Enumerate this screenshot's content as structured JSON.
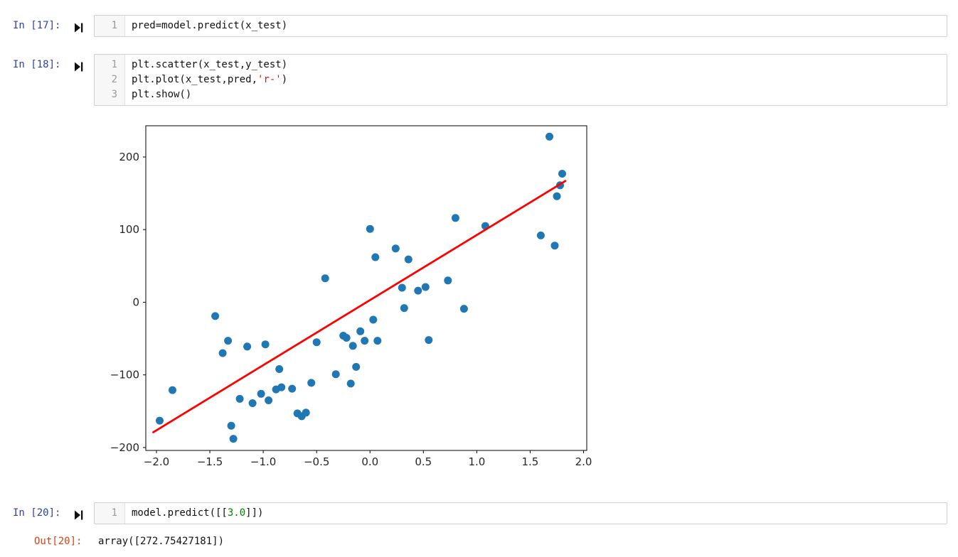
{
  "notebook": {
    "cells": [
      {
        "prompt": "In [17]:",
        "lines": [
          {
            "number": "1",
            "segments": [
              {
                "t": "pred=model.predict(x_test)",
                "type": "plain"
              }
            ]
          }
        ]
      },
      {
        "prompt": "In [18]:",
        "lines": [
          {
            "number": "1",
            "segments": [
              {
                "t": "plt.scatter(x_test,y_test)",
                "type": "plain"
              }
            ]
          },
          {
            "number": "2",
            "segments": [
              {
                "t": "plt.plot(x_test,pred,",
                "type": "plain"
              },
              {
                "t": "'r-'",
                "type": "string"
              },
              {
                "t": ")",
                "type": "plain"
              }
            ]
          },
          {
            "number": "3",
            "segments": [
              {
                "t": "plt.show()",
                "type": "plain"
              }
            ]
          }
        ]
      },
      {
        "prompt": "In [20]:",
        "lines": [
          {
            "number": "1",
            "segments": [
              {
                "t": "model.predict([[",
                "type": "plain"
              },
              {
                "t": "3.0",
                "type": "number"
              },
              {
                "t": "]])",
                "type": "plain"
              }
            ]
          }
        ]
      }
    ],
    "output": {
      "prompt": "Out[20]:",
      "value": "array([272.75427181])"
    }
  },
  "colors": {
    "in_prompt": "#303F9F",
    "out_prompt": "#D84315",
    "string_token": "#BA2121",
    "number_token": "#008000"
  },
  "chart_data": {
    "type": "scatter",
    "title": "",
    "xlabel": "",
    "ylabel": "",
    "grid": false,
    "legend": "none",
    "xlim": [
      -2.1,
      2.03
    ],
    "ylim": [
      -204,
      243
    ],
    "xticks": [
      -2.0,
      -1.5,
      -1.0,
      -0.5,
      0.0,
      0.5,
      1.0,
      1.5,
      2.0
    ],
    "xtick_labels": [
      "−2.0",
      "−1.5",
      "−1.0",
      "−0.5",
      "0.0",
      "0.5",
      "1.0",
      "1.5",
      "2.0"
    ],
    "yticks": [
      -200,
      -100,
      0,
      100,
      200
    ],
    "ytick_labels": [
      "−200",
      "−100",
      "0",
      "100",
      "200"
    ],
    "series": [
      {
        "name": "scatter x_test vs y_test",
        "type": "scatter",
        "color": "#1f77b4",
        "marker_radius": 5.5,
        "points": [
          [
            -1.97,
            -163
          ],
          [
            -1.85,
            -121
          ],
          [
            -1.45,
            -19
          ],
          [
            -1.38,
            -70
          ],
          [
            -1.33,
            -53
          ],
          [
            -1.3,
            -170
          ],
          [
            -1.28,
            -188
          ],
          [
            -1.22,
            -133
          ],
          [
            -1.15,
            -61
          ],
          [
            -1.1,
            -139
          ],
          [
            -1.02,
            -126
          ],
          [
            -0.98,
            -58
          ],
          [
            -0.95,
            -135
          ],
          [
            -0.88,
            -120
          ],
          [
            -0.85,
            -92
          ],
          [
            -0.83,
            -117
          ],
          [
            -0.73,
            -119
          ],
          [
            -0.68,
            -153
          ],
          [
            -0.64,
            -157
          ],
          [
            -0.6,
            -152
          ],
          [
            -0.55,
            -111
          ],
          [
            -0.5,
            -55
          ],
          [
            -0.42,
            33
          ],
          [
            -0.32,
            -99
          ],
          [
            -0.25,
            -46
          ],
          [
            -0.22,
            -49
          ],
          [
            -0.18,
            -112
          ],
          [
            -0.16,
            -60
          ],
          [
            -0.13,
            -89
          ],
          [
            -0.09,
            -40
          ],
          [
            -0.05,
            -53
          ],
          [
            0.0,
            101
          ],
          [
            0.03,
            -24
          ],
          [
            0.05,
            62
          ],
          [
            0.07,
            -53
          ],
          [
            0.24,
            74
          ],
          [
            0.3,
            20
          ],
          [
            0.32,
            -8
          ],
          [
            0.36,
            59
          ],
          [
            0.45,
            16
          ],
          [
            0.52,
            21
          ],
          [
            0.55,
            -52
          ],
          [
            0.73,
            30
          ],
          [
            0.8,
            116
          ],
          [
            0.88,
            -9
          ],
          [
            1.08,
            105
          ],
          [
            1.6,
            92
          ],
          [
            1.68,
            228
          ],
          [
            1.73,
            78
          ],
          [
            1.75,
            146
          ],
          [
            1.78,
            161
          ],
          [
            1.8,
            177
          ]
        ]
      },
      {
        "name": "regression line pred",
        "type": "line",
        "color": "#ff0000",
        "line_width": 2.8,
        "points": [
          [
            -2.03,
            -179
          ],
          [
            1.83,
            167
          ]
        ]
      }
    ]
  }
}
